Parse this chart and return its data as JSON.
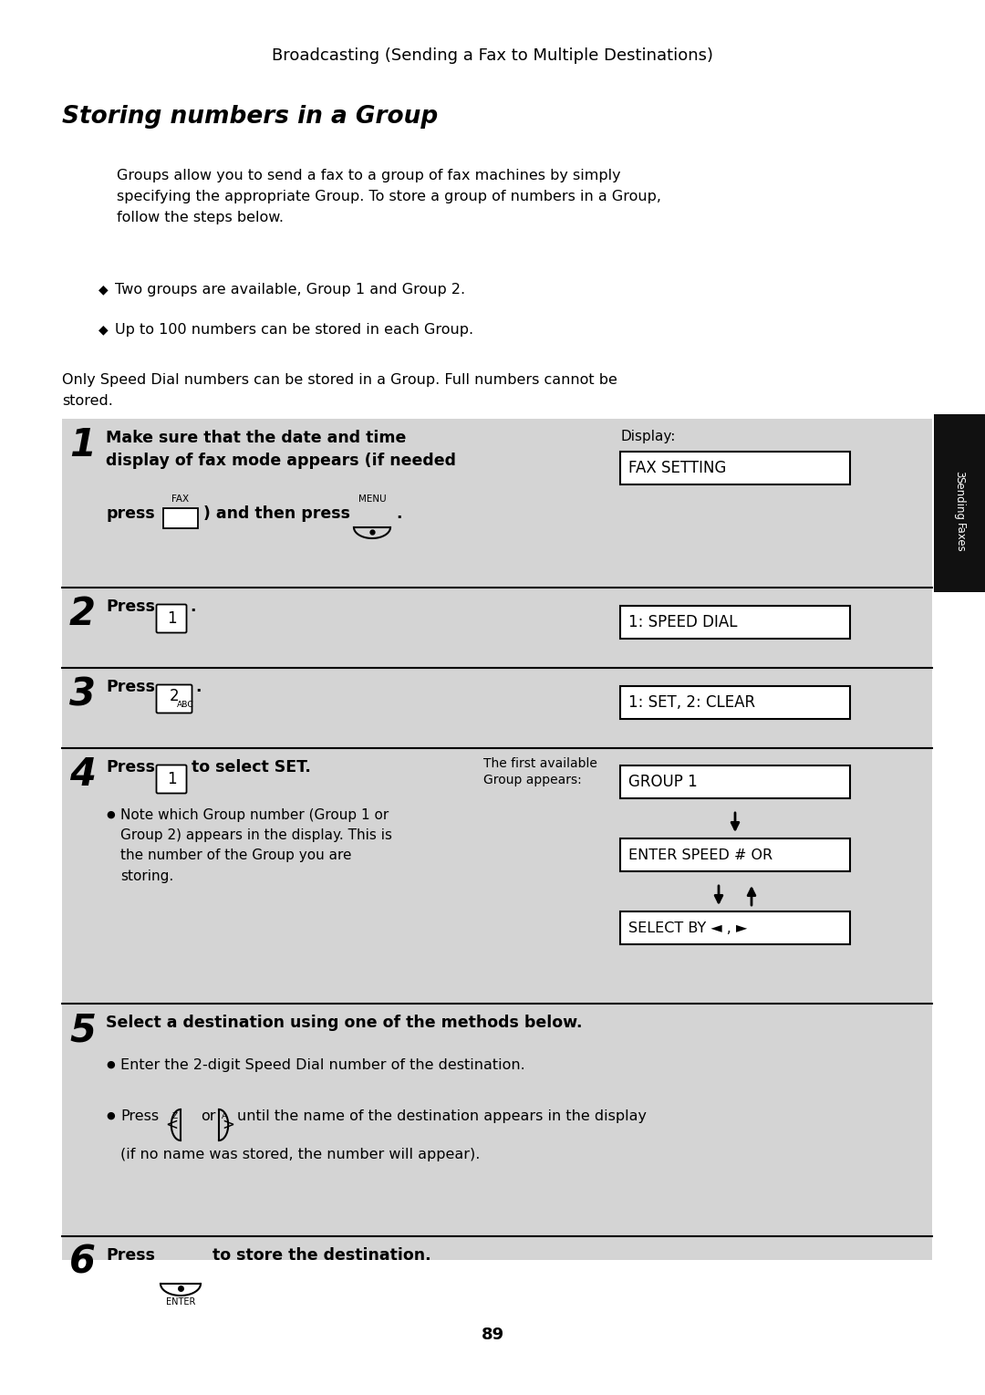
{
  "page_title": "Broadcasting (Sending a Fax to Multiple Destinations)",
  "section_title": "Storing numbers in a Group",
  "bg_color": "#ffffff",
  "gray_bg": "#d4d4d4",
  "body_text_1": "Groups allow you to send a fax to a group of fax machines by simply\nspecifying the appropriate Group. To store a group of numbers in a Group,\nfollow the steps below.",
  "bullet1": "Two groups are available, Group 1 and Group 2.",
  "bullet2": "Up to 100 numbers can be stored in each Group.",
  "note_text": "Only Speed Dial numbers can be stored in a Group. Full numbers cannot be\nstored.",
  "step1_bold": "Make sure that the date and time\ndisplay of fax mode appears (if needed",
  "step1_fax_label": "FAX",
  "step1_menu_label": "MENU",
  "step1_display_label": "Display:",
  "step1_display_box": "FAX SETTING",
  "step2_display": "1: SPEED DIAL",
  "step3_display": "1: SET, 2: CLEAR",
  "step4_first": "The first available\nGroup appears:",
  "step4_display1": "GROUP 1",
  "step4_display2": "ENTER SPEED # OR",
  "step4_display3": "SELECT BY ◄ , ►",
  "step4_bullet": "Note which Group number (Group 1 or\nGroup 2) appears in the display. This is\nthe number of the Group you are\nstoring.",
  "step5_bold": "Select a destination using one of the methods below.",
  "step5_bullet1": "Enter the 2-digit Speed Dial number of the destination.",
  "step5_bullet2c": "until the name of the destination appears in the display",
  "step5_bullet2d": "(if no name was stored, the number will appear).",
  "page_number": "89"
}
